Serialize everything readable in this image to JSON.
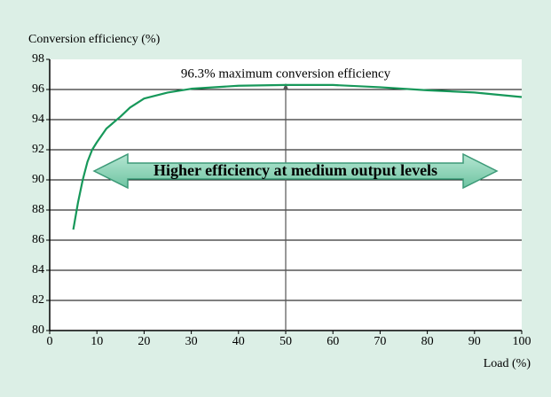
{
  "chart_data": {
    "type": "line",
    "ylabel": "Conversion efficiency (%)",
    "xlabel": "Load (%)",
    "x": [
      5,
      6,
      7,
      8,
      9,
      10,
      12,
      15,
      17,
      20,
      25,
      30,
      40,
      50,
      60,
      70,
      80,
      90,
      100
    ],
    "series": [
      {
        "color": "#17985a",
        "values": [
          86.7,
          88.5,
          90,
          91.2,
          92,
          92.5,
          93.4,
          94.2,
          94.8,
          95.4,
          95.8,
          96.05,
          96.25,
          96.3,
          96.3,
          96.15,
          95.95,
          95.8,
          95.5
        ]
      }
    ],
    "xlim": [
      0,
      100
    ],
    "xticks": [
      0,
      10,
      20,
      30,
      40,
      50,
      60,
      70,
      80,
      90,
      100
    ],
    "ylim": [
      80,
      98
    ],
    "yticks": [
      80,
      82,
      84,
      86,
      88,
      90,
      92,
      94,
      96,
      98
    ],
    "grid": true,
    "annotations": [
      {
        "text": "96.3% maximum conversion efficiency",
        "x": 50
      },
      {
        "text": "Higher efficiency at medium output levels"
      }
    ]
  }
}
